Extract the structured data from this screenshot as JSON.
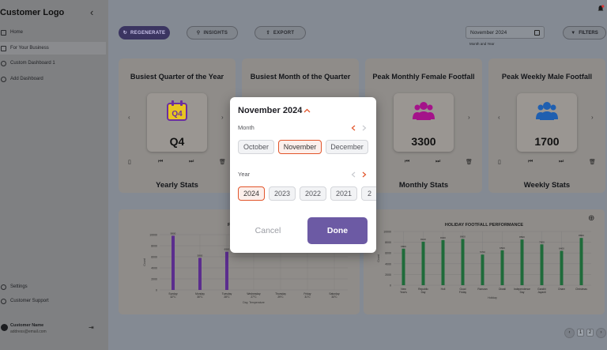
{
  "sidebar": {
    "logo": "Customer Logo",
    "items": [
      {
        "label": "Home"
      },
      {
        "label": "For Your Business"
      },
      {
        "label": "Custom Dashboard 1"
      },
      {
        "label": "Add Dashboard"
      }
    ],
    "bottom_items": [
      {
        "label": "Settings"
      },
      {
        "label": "Customer Support"
      }
    ],
    "user": {
      "name": "Customer Name",
      "email": "address@email.com"
    }
  },
  "toolbar": {
    "regenerate_label": "REGENERATE",
    "insights_label": "INSIGHTS",
    "export_label": "EXPORT",
    "date_value": "November  2024",
    "date_caption": "Month and Year",
    "filters_label": "FILTERS"
  },
  "cards": [
    {
      "title": "Busiest Quarter of the Year",
      "value": "Q4",
      "stats": "Yearly Stats"
    },
    {
      "title": "Busiest Month of the Quarter",
      "value": "",
      "stats": ""
    },
    {
      "title": "Peak Monthly Female Footfall",
      "value": "3300",
      "stats": "Monthly Stats"
    },
    {
      "title": "Peak Weekly Male Footfall",
      "value": "1700",
      "stats": "Weekly Stats"
    }
  ],
  "charts": {
    "left_title": "FOOTFALL",
    "right_title": "HOLIDAY FOOTFALL PERFORMANCE"
  },
  "pager": {
    "page": "1",
    "next_page": "2"
  },
  "colors": {
    "accent": "#e2552b",
    "primary": "#6c5aa4",
    "bar": "#5b2d8e",
    "bar_green": "#1f6b3a"
  },
  "modal": {
    "title": "November 2024",
    "month_label": "Month",
    "months": [
      "October",
      "November",
      "December"
    ],
    "selected_month": "November",
    "year_label": "Year",
    "years": [
      "2024",
      "2023",
      "2022",
      "2021",
      "2"
    ],
    "selected_year": "2024",
    "cancel_label": "Cancel",
    "done_label": "Done"
  },
  "chart_data": [
    {
      "type": "bar",
      "title": "FOOTFALL",
      "xlabel": "Day, Temperature",
      "ylabel": "Count",
      "categories": [
        "Sunday 32°C",
        "Monday 30°C",
        "Tuesday 28°C",
        "Wednesday 27°C",
        "Thursday 29°C",
        "Friday 31°C",
        "Saturday 33°C"
      ],
      "values": [
        9800,
        5800,
        6900,
        0,
        0,
        0,
        0
      ],
      "ylim": [
        0,
        10000
      ]
    },
    {
      "type": "bar",
      "title": "HOLIDAY FOOTFALL PERFORMANCE",
      "xlabel": "Holiday",
      "ylabel": "Count",
      "categories": [
        "New Year's",
        "Republic Day",
        "Holi",
        "Good Friday",
        "Ramzan",
        "Diwali",
        "Independence Day",
        "Gandhi Jayanti",
        "Onam",
        "Christmas"
      ],
      "values": [
        6800,
        8100,
        8400,
        8600,
        5700,
        6500,
        8500,
        7600,
        6400,
        8800
      ],
      "ylim": [
        0,
        10000
      ]
    }
  ]
}
